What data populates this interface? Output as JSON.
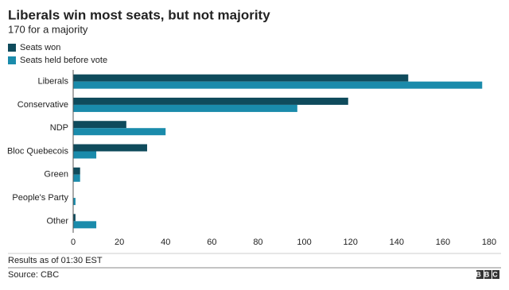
{
  "chart_data": {
    "type": "hbar",
    "title": "Liberals win most seats, but not majority",
    "subtitle": "170 for a majority",
    "categories": [
      "Liberals",
      "Conservative",
      "NDP",
      "Bloc Quebecois",
      "Green",
      "People's Party",
      "Other"
    ],
    "series": [
      {
        "name": "Seats won",
        "color": "#0f4b5c",
        "values": [
          145,
          119,
          23,
          32,
          3,
          0,
          1
        ]
      },
      {
        "name": "Seats held before vote",
        "color": "#1a8bab",
        "values": [
          177,
          97,
          40,
          10,
          3,
          1,
          10
        ]
      }
    ],
    "xlim": [
      0,
      180
    ],
    "xticks": [
      0,
      20,
      40,
      60,
      80,
      100,
      120,
      140,
      160,
      180
    ],
    "grid": false,
    "legend": "top-left",
    "note": "Results as of 01:30 EST",
    "source": "Source: CBC",
    "logo": "BBC"
  }
}
